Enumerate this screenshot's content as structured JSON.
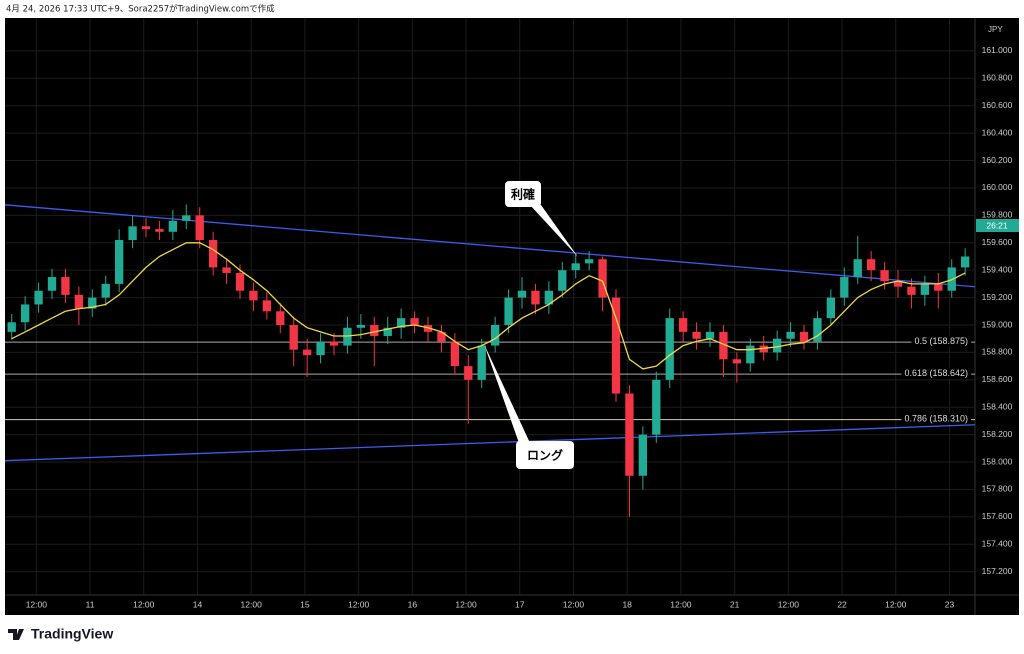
{
  "header": {
    "caption": "4月 24, 2026 17:33 UTC+9、Sora2257がTradingView.comで作成"
  },
  "footer": {
    "logo": "TradingView"
  },
  "chart_data": {
    "type": "candlestick",
    "currency": "JPY",
    "countdown": "26:21",
    "up_color": "#22ab94",
    "down_color": "#f23645",
    "grid": true,
    "xlim": [
      0,
      216.7
    ],
    "ylim": [
      157.03,
      161.24
    ],
    "xticks": [
      {
        "value": 7,
        "label": "12:00"
      },
      {
        "value": 19,
        "label": "11"
      },
      {
        "value": 31,
        "label": "12:00"
      },
      {
        "value": 43,
        "label": "14"
      },
      {
        "value": 55,
        "label": "12:00"
      },
      {
        "value": 67,
        "label": "15"
      },
      {
        "value": 79,
        "label": "12:00"
      },
      {
        "value": 91,
        "label": "16"
      },
      {
        "value": 103,
        "label": "12:00"
      },
      {
        "value": 115,
        "label": "17"
      },
      {
        "value": 127,
        "label": "12:00"
      },
      {
        "value": 139,
        "label": "18"
      },
      {
        "value": 151,
        "label": "12:00"
      },
      {
        "value": 163,
        "label": "21"
      },
      {
        "value": 175,
        "label": "12:00"
      },
      {
        "value": 187,
        "label": "22"
      },
      {
        "value": 199,
        "label": "12:00"
      },
      {
        "value": 211,
        "label": "23"
      }
    ],
    "yticks": [
      {
        "value": 157.2,
        "label": "157.200"
      },
      {
        "value": 157.4,
        "label": "157.400"
      },
      {
        "value": 157.6,
        "label": "157.600"
      },
      {
        "value": 157.8,
        "label": "157.800"
      },
      {
        "value": 158.0,
        "label": "158.000"
      },
      {
        "value": 158.2,
        "label": "158.200"
      },
      {
        "value": 158.4,
        "label": "158.400"
      },
      {
        "value": 158.6,
        "label": "158.600"
      },
      {
        "value": 158.8,
        "label": "158.800"
      },
      {
        "value": 159.0,
        "label": "159.000"
      },
      {
        "value": 159.2,
        "label": "159.200"
      },
      {
        "value": 159.4,
        "label": "159.400"
      },
      {
        "value": 159.6,
        "label": "159.600"
      },
      {
        "value": 159.8,
        "label": "159.800"
      },
      {
        "value": 160.0,
        "label": "160.000"
      },
      {
        "value": 160.2,
        "label": "160.200"
      },
      {
        "value": 160.4,
        "label": "160.400"
      },
      {
        "value": 160.6,
        "label": "160.600"
      },
      {
        "value": 160.8,
        "label": "160.800"
      },
      {
        "value": 161.0,
        "label": "161.000"
      }
    ],
    "x": [
      1.5,
      4.5,
      7.5,
      10.5,
      13.5,
      16.5,
      19.5,
      22.5,
      25.5,
      28.5,
      31.5,
      34.5,
      37.5,
      40.5,
      43.5,
      46.5,
      49.5,
      52.5,
      55.5,
      58.5,
      61.5,
      64.5,
      67.5,
      70.5,
      73.5,
      76.5,
      79.5,
      82.5,
      85.5,
      88.5,
      91.5,
      94.5,
      97.5,
      100.5,
      103.5,
      106.5,
      109.5,
      112.5,
      115.5,
      118.5,
      121.5,
      124.5,
      127.5,
      130.5,
      133.5,
      136.5,
      139.5,
      142.5,
      145.5,
      148.5,
      151.5,
      154.5,
      157.5,
      160.5,
      163.5,
      166.5,
      169.5,
      172.5,
      175.5,
      178.5,
      181.5,
      184.5,
      187.5,
      190.5,
      193.5,
      196.5,
      199.5,
      202.5,
      205.5,
      208.5,
      211.5,
      214.5
    ],
    "open": [
      158.95,
      159.02,
      159.15,
      159.25,
      159.35,
      159.22,
      159.12,
      159.2,
      159.3,
      159.62,
      159.72,
      159.7,
      159.68,
      159.76,
      159.8,
      159.62,
      159.42,
      159.38,
      159.25,
      159.18,
      159.1,
      159.0,
      158.82,
      158.78,
      158.88,
      158.85,
      158.98,
      159.0,
      158.92,
      158.98,
      159.05,
      159.0,
      158.95,
      158.88,
      158.7,
      158.6,
      158.85,
      159.0,
      159.2,
      159.25,
      159.15,
      159.25,
      159.4,
      159.45,
      159.48,
      159.2,
      158.5,
      157.9,
      158.2,
      158.6,
      159.05,
      158.95,
      158.9,
      158.95,
      158.75,
      158.72,
      158.85,
      158.8,
      158.9,
      158.95,
      158.88,
      159.05,
      159.2,
      159.35,
      159.48,
      159.4,
      159.32,
      159.28,
      159.22,
      159.3,
      159.25,
      159.42
    ],
    "high": [
      159.08,
      159.21,
      159.31,
      159.41,
      159.41,
      159.28,
      159.26,
      159.36,
      159.7,
      159.8,
      159.78,
      159.76,
      159.84,
      159.88,
      159.86,
      159.68,
      159.48,
      159.44,
      159.31,
      159.24,
      159.16,
      159.06,
      158.9,
      158.94,
      158.94,
      159.06,
      159.08,
      159.06,
      159.06,
      159.12,
      159.1,
      159.06,
      159.0,
      158.94,
      158.78,
      158.9,
      159.06,
      159.26,
      159.35,
      159.3,
      159.32,
      159.46,
      159.52,
      159.54,
      159.5,
      159.26,
      158.56,
      158.26,
      158.66,
      159.12,
      159.1,
      159.02,
      159.02,
      159.0,
      158.8,
      158.9,
      158.92,
      158.96,
      159.02,
      159.0,
      159.1,
      159.26,
      159.42,
      159.65,
      159.54,
      159.46,
      159.4,
      159.34,
      159.36,
      159.38,
      159.48,
      159.56
    ],
    "low": [
      158.89,
      158.96,
      159.09,
      159.19,
      159.16,
      159.0,
      159.06,
      159.14,
      159.24,
      159.56,
      159.64,
      159.62,
      159.62,
      159.7,
      159.56,
      159.36,
      159.3,
      159.19,
      159.1,
      159.04,
      158.94,
      158.7,
      158.62,
      158.72,
      158.78,
      158.79,
      158.9,
      158.7,
      158.86,
      158.9,
      158.94,
      158.88,
      158.8,
      158.64,
      158.28,
      158.54,
      158.8,
      158.94,
      159.12,
      159.08,
      159.08,
      159.2,
      159.34,
      159.4,
      159.1,
      158.44,
      157.6,
      157.8,
      158.14,
      158.54,
      158.88,
      158.82,
      158.84,
      158.62,
      158.58,
      158.66,
      158.74,
      158.74,
      158.84,
      158.82,
      158.82,
      159.0,
      159.14,
      159.3,
      159.32,
      159.26,
      159.2,
      159.12,
      159.14,
      159.12,
      159.2,
      159.36
    ],
    "close": [
      159.02,
      159.15,
      159.25,
      159.35,
      159.22,
      159.12,
      159.2,
      159.3,
      159.62,
      159.72,
      159.7,
      159.68,
      159.76,
      159.8,
      159.62,
      159.42,
      159.38,
      159.25,
      159.18,
      159.1,
      159.0,
      158.82,
      158.78,
      158.88,
      158.85,
      158.98,
      159.0,
      158.92,
      158.98,
      159.05,
      159.0,
      158.95,
      158.88,
      158.7,
      158.6,
      158.85,
      159.0,
      159.2,
      159.25,
      159.15,
      159.25,
      159.4,
      159.45,
      159.48,
      159.2,
      158.5,
      157.9,
      158.2,
      158.6,
      159.05,
      158.95,
      158.9,
      158.95,
      158.75,
      158.72,
      158.85,
      158.8,
      158.9,
      158.95,
      158.88,
      159.05,
      159.2,
      159.35,
      159.48,
      159.4,
      159.32,
      159.28,
      159.22,
      159.3,
      159.25,
      159.42,
      159.5
    ],
    "moving_average": {
      "color": "#f0d840",
      "values": [
        158.9,
        158.95,
        159.0,
        159.05,
        159.1,
        159.12,
        159.13,
        159.15,
        159.22,
        159.32,
        159.42,
        159.5,
        159.55,
        159.6,
        159.6,
        159.55,
        159.48,
        159.4,
        159.33,
        159.25,
        159.15,
        159.05,
        158.98,
        158.95,
        158.92,
        158.92,
        158.93,
        158.95,
        158.97,
        158.99,
        159.0,
        158.98,
        158.95,
        158.88,
        158.82,
        158.85,
        158.9,
        158.98,
        159.05,
        159.1,
        159.15,
        159.22,
        159.3,
        159.36,
        159.32,
        159.05,
        158.75,
        158.68,
        158.7,
        158.78,
        158.85,
        158.88,
        158.9,
        158.86,
        158.82,
        158.82,
        158.83,
        158.84,
        158.86,
        158.87,
        158.92,
        159.0,
        159.1,
        159.2,
        159.26,
        159.3,
        159.32,
        159.3,
        159.3,
        159.3,
        159.33,
        159.38
      ]
    },
    "trend_lines": [
      {
        "color": "#3a5cf0",
        "x": [
          0,
          216.7
        ],
        "y": [
          159.877,
          159.279
        ]
      },
      {
        "color": "#3a5cf0",
        "x": [
          0,
          216.7
        ],
        "y": [
          158.01,
          158.272
        ]
      }
    ],
    "fib_levels": [
      {
        "value": 158.875,
        "label": "0.5 (158.875)"
      },
      {
        "value": 158.642,
        "label": "0.618 (158.642)"
      },
      {
        "value": 158.31,
        "label": "0.786 (158.310)"
      }
    ],
    "annotations": [
      {
        "text": "利確"
      },
      {
        "text": "ロング"
      }
    ]
  }
}
